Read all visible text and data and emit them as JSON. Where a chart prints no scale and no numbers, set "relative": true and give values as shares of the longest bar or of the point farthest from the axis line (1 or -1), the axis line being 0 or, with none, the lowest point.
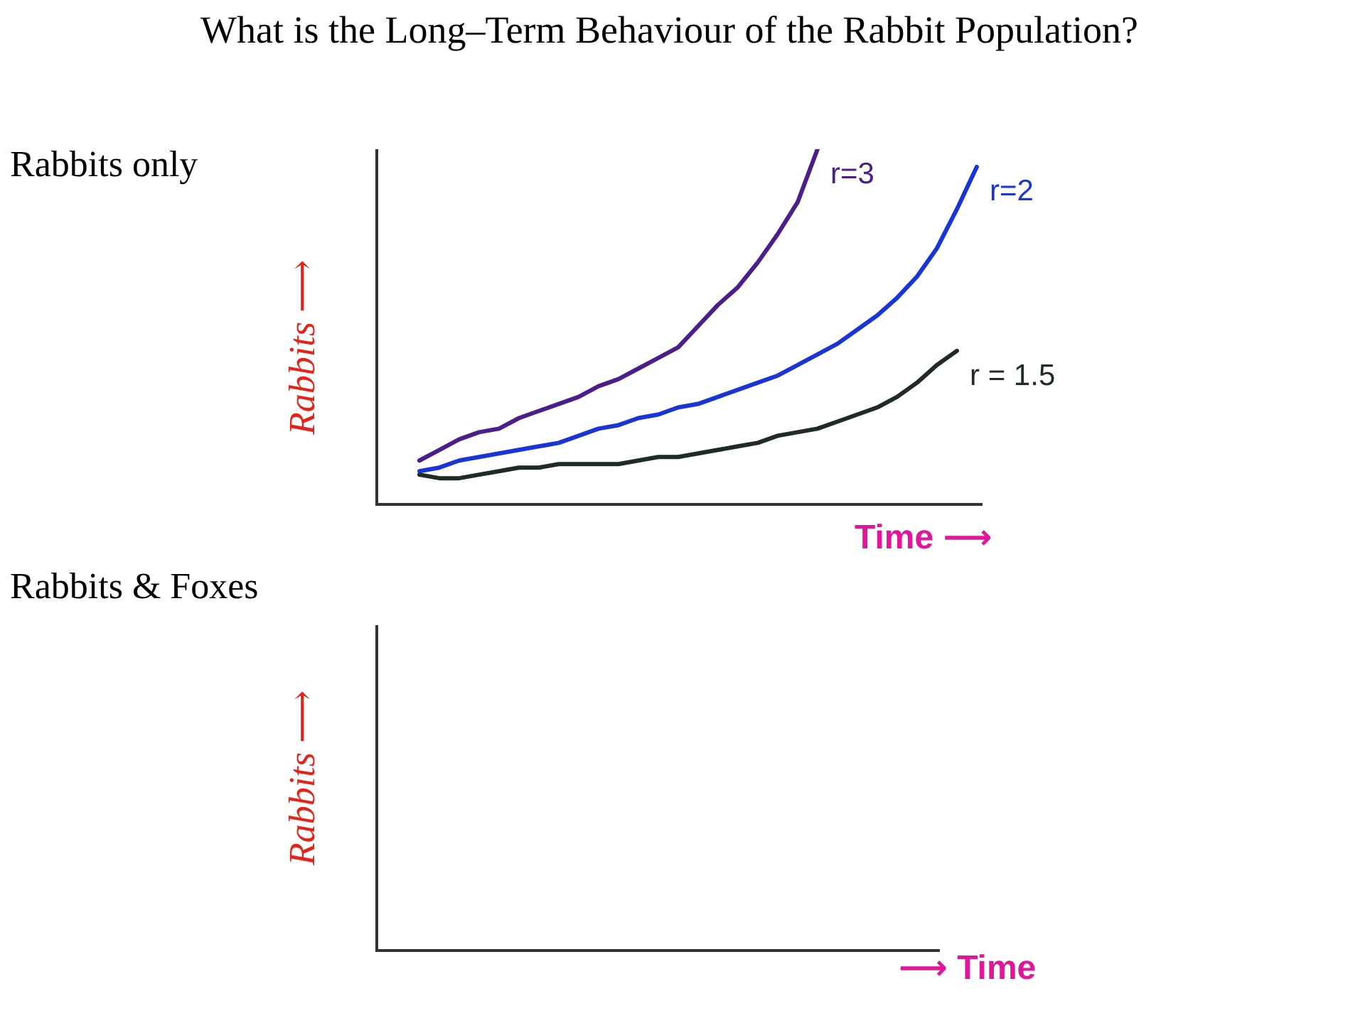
{
  "chart_data": [
    {
      "type": "line",
      "title": "What is the Long–Term Behaviour of the Rabbit Population?",
      "subtitle": "Rabbits only",
      "xlabel": "Time ⟶",
      "ylabel": "Rabbits ⟶",
      "relative": true,
      "categories": [
        null,
        null,
        null,
        null,
        null,
        null,
        null,
        null,
        null,
        null,
        null,
        null,
        null,
        null,
        null,
        null,
        null,
        null,
        null,
        null,
        null,
        null,
        null,
        null,
        null,
        null,
        null,
        null,
        null
      ],
      "series": [
        {
          "name": "r=3",
          "color": "#4b1e8c",
          "values": [
            0.12,
            0.15,
            0.18,
            0.2,
            0.21,
            0.24,
            0.26,
            0.28,
            0.3,
            0.33,
            0.35,
            0.38,
            0.41,
            0.44,
            0.5,
            0.56,
            0.61,
            0.68,
            0.76,
            0.85,
            1.0,
            null,
            null,
            null,
            null,
            null,
            null,
            null,
            null
          ]
        },
        {
          "name": "r=2",
          "color": "#1a35d6",
          "values": [
            0.09,
            0.1,
            0.12,
            0.13,
            0.14,
            0.15,
            0.16,
            0.17,
            0.19,
            0.21,
            0.22,
            0.24,
            0.25,
            0.27,
            0.28,
            0.3,
            0.32,
            0.34,
            0.36,
            0.39,
            0.42,
            0.45,
            0.49,
            0.53,
            0.58,
            0.64,
            0.72,
            0.83,
            0.95
          ]
        },
        {
          "name": "r = 1.5",
          "color": "#1f2b24",
          "values": [
            0.08,
            0.07,
            0.07,
            0.08,
            0.09,
            0.1,
            0.1,
            0.11,
            0.11,
            0.11,
            0.11,
            0.12,
            0.13,
            0.13,
            0.14,
            0.15,
            0.16,
            0.17,
            0.19,
            0.2,
            0.21,
            0.23,
            0.25,
            0.27,
            0.3,
            0.34,
            0.39,
            0.43,
            null
          ]
        }
      ]
    },
    {
      "type": "other",
      "subtitle": "Rabbits & Foxes",
      "xlabel": "⟶ Time",
      "ylabel": "Rabbits ⟶"
    }
  ]
}
